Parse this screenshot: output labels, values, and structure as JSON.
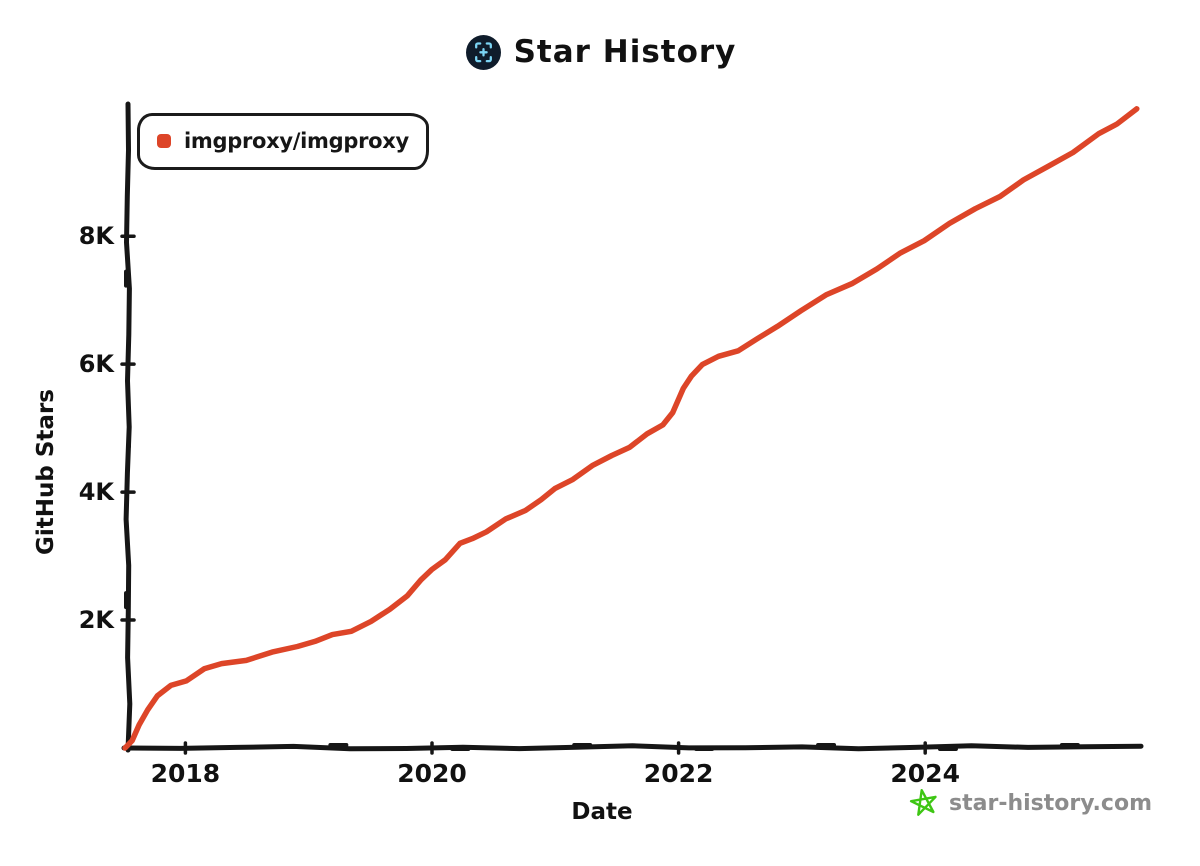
{
  "header": {
    "title": "Star History",
    "logo_icon": "star-history-logo",
    "logo_bg": "#0f1c2b",
    "logo_accent": "#7cd5f5"
  },
  "legend": {
    "items": [
      {
        "label": "imgproxy/imgproxy",
        "color": "#DD4528"
      }
    ]
  },
  "watermark": {
    "text": "star-history.com",
    "icon": "green-star-icon",
    "icon_color": "#3ec614",
    "text_color": "#8c8c8c"
  },
  "chart_data": {
    "type": "line",
    "title": "Star History",
    "xlabel": "Date",
    "ylabel": "GitHub Stars",
    "x_range": [
      2017.51,
      2025.75
    ],
    "y_range": [
      0,
      10050
    ],
    "grid": false,
    "legend_position": "top-left",
    "axis_color": "#161616",
    "x_ticks": [
      {
        "value": 2018,
        "label": "2018"
      },
      {
        "value": 2020,
        "label": "2020"
      },
      {
        "value": 2022,
        "label": "2022"
      },
      {
        "value": 2024,
        "label": "2024"
      }
    ],
    "y_ticks": [
      {
        "value": 2000,
        "label": "2K"
      },
      {
        "value": 4000,
        "label": "4K"
      },
      {
        "value": 6000,
        "label": "6K"
      },
      {
        "value": 8000,
        "label": "8K"
      }
    ],
    "series": [
      {
        "name": "imgproxy/imgproxy",
        "color": "#DD4528",
        "points": [
          [
            2017.51,
            0
          ],
          [
            2017.56,
            130
          ],
          [
            2017.62,
            340
          ],
          [
            2017.7,
            610
          ],
          [
            2017.78,
            820
          ],
          [
            2017.88,
            960
          ],
          [
            2018.0,
            1070
          ],
          [
            2018.15,
            1230
          ],
          [
            2018.3,
            1310
          ],
          [
            2018.5,
            1390
          ],
          [
            2018.7,
            1480
          ],
          [
            2018.9,
            1590
          ],
          [
            2019.05,
            1680
          ],
          [
            2019.2,
            1750
          ],
          [
            2019.35,
            1840
          ],
          [
            2019.5,
            1980
          ],
          [
            2019.65,
            2150
          ],
          [
            2019.8,
            2400
          ],
          [
            2019.92,
            2620
          ],
          [
            2020.0,
            2780
          ],
          [
            2020.1,
            2960
          ],
          [
            2020.22,
            3180
          ],
          [
            2020.33,
            3280
          ],
          [
            2020.45,
            3390
          ],
          [
            2020.6,
            3560
          ],
          [
            2020.75,
            3730
          ],
          [
            2020.88,
            3880
          ],
          [
            2021.0,
            4040
          ],
          [
            2021.15,
            4220
          ],
          [
            2021.3,
            4400
          ],
          [
            2021.45,
            4570
          ],
          [
            2021.6,
            4720
          ],
          [
            2021.75,
            4890
          ],
          [
            2021.88,
            5060
          ],
          [
            2021.95,
            5250
          ],
          [
            2022.03,
            5600
          ],
          [
            2022.1,
            5830
          ],
          [
            2022.2,
            5990
          ],
          [
            2022.33,
            6110
          ],
          [
            2022.48,
            6230
          ],
          [
            2022.63,
            6380
          ],
          [
            2022.8,
            6590
          ],
          [
            2023.0,
            6850
          ],
          [
            2023.2,
            7060
          ],
          [
            2023.4,
            7270
          ],
          [
            2023.6,
            7490
          ],
          [
            2023.8,
            7720
          ],
          [
            2024.0,
            7950
          ],
          [
            2024.2,
            8190
          ],
          [
            2024.4,
            8420
          ],
          [
            2024.6,
            8640
          ],
          [
            2024.8,
            8860
          ],
          [
            2025.0,
            9090
          ],
          [
            2025.2,
            9320
          ],
          [
            2025.4,
            9580
          ],
          [
            2025.55,
            9770
          ],
          [
            2025.72,
            9990
          ]
        ]
      }
    ]
  }
}
